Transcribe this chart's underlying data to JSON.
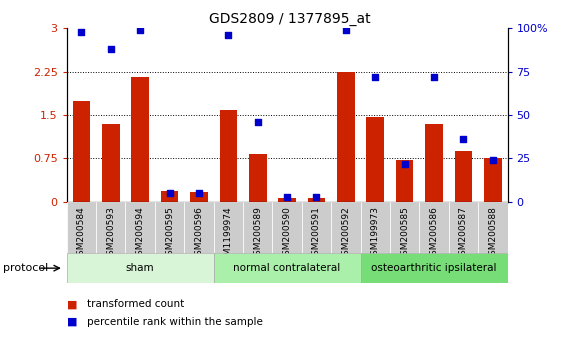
{
  "title": "GDS2809 / 1377895_at",
  "samples": [
    "GSM200584",
    "GSM200593",
    "GSM200594",
    "GSM200595",
    "GSM200596",
    "GSM1199974",
    "GSM200589",
    "GSM200590",
    "GSM200591",
    "GSM200592",
    "GSM199973",
    "GSM200585",
    "GSM200586",
    "GSM200587",
    "GSM200588"
  ],
  "transformed_count": [
    1.75,
    1.35,
    2.15,
    0.18,
    0.17,
    1.58,
    0.82,
    0.07,
    0.07,
    2.25,
    1.47,
    0.72,
    1.35,
    0.87,
    0.75
  ],
  "percentile_rank": [
    98,
    88,
    99,
    5,
    5,
    96,
    46,
    3,
    3,
    99,
    72,
    22,
    72,
    36,
    24
  ],
  "groups": [
    {
      "label": "sham",
      "start": 0,
      "end": 5,
      "color": "#d8f5d8"
    },
    {
      "label": "normal contralateral",
      "start": 5,
      "end": 10,
      "color": "#aaf0aa"
    },
    {
      "label": "osteoarthritic ipsilateral",
      "start": 10,
      "end": 15,
      "color": "#77dd77"
    }
  ],
  "bar_color": "#cc2200",
  "dot_color": "#0000cc",
  "left_ylim": [
    0,
    3.0
  ],
  "right_ylim": [
    0,
    100
  ],
  "left_yticks": [
    0,
    0.75,
    1.5,
    2.25,
    3.0
  ],
  "right_yticks": [
    0,
    25,
    50,
    75,
    100
  ],
  "left_yticklabels": [
    "0",
    "0.75",
    "1.5",
    "2.25",
    "3"
  ],
  "right_yticklabels": [
    "0",
    "25",
    "50",
    "75",
    "100%"
  ],
  "hgrid_values": [
    0.75,
    1.5,
    2.25
  ],
  "legend_items": [
    {
      "label": "transformed count",
      "color": "#cc2200"
    },
    {
      "label": "percentile rank within the sample",
      "color": "#0000cc"
    }
  ],
  "protocol_label": "protocol",
  "background_color": "#ffffff",
  "xtick_bg_color": "#cccccc"
}
